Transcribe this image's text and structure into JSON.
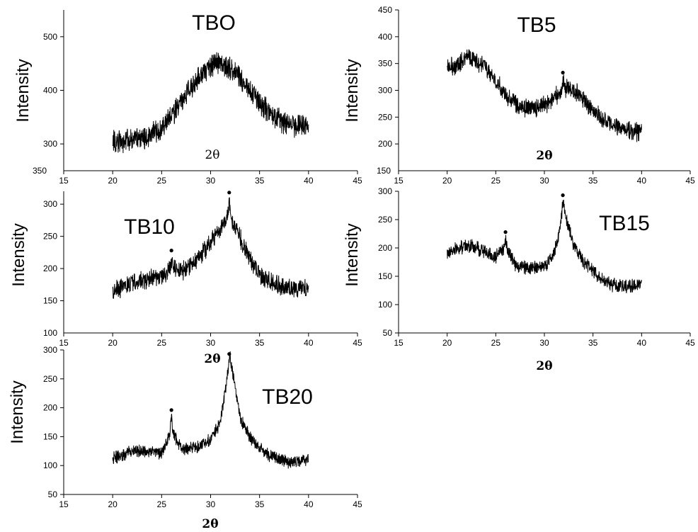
{
  "chart_data": [
    {
      "type": "line",
      "title": "TBO",
      "xlabel": "2θ",
      "ylabel": "Intensity",
      "xlim": [
        15,
        45
      ],
      "ylim": [
        250,
        550
      ],
      "x_ticks": [
        15,
        20,
        25,
        30,
        35,
        40,
        45
      ],
      "y_ticks": [
        300,
        400,
        500
      ],
      "y_tick_labels": [
        "300",
        "400",
        "500"
      ],
      "extra_y_label": "350",
      "grid": false,
      "profile": [
        [
          20,
          305
        ],
        [
          21,
          305
        ],
        [
          22,
          308
        ],
        [
          23,
          312
        ],
        [
          24,
          318
        ],
        [
          25,
          330
        ],
        [
          26,
          352
        ],
        [
          27,
          378
        ],
        [
          28,
          405
        ],
        [
          29,
          430
        ],
        [
          30,
          447
        ],
        [
          31,
          450
        ],
        [
          32,
          440
        ],
        [
          33,
          422
        ],
        [
          34,
          400
        ],
        [
          35,
          378
        ],
        [
          36,
          360
        ],
        [
          37,
          345
        ],
        [
          38,
          336
        ],
        [
          39,
          332
        ],
        [
          40,
          330
        ]
      ],
      "noise": 18,
      "peaks": []
    },
    {
      "type": "line",
      "title": "TB5",
      "xlabel": "2θ",
      "ylabel": "Intensity",
      "xlim": [
        15,
        45
      ],
      "ylim": [
        150,
        450
      ],
      "x_ticks": [
        15,
        20,
        25,
        30,
        35,
        40,
        45
      ],
      "y_ticks": [
        200,
        250,
        300,
        350,
        400,
        450
      ],
      "y_tick_labels": [
        "200",
        "250",
        "300",
        "350",
        "400",
        "450"
      ],
      "extra_y_label": "150",
      "grid": false,
      "profile": [
        [
          20,
          345
        ],
        [
          21,
          345
        ],
        [
          22,
          365
        ],
        [
          23,
          355
        ],
        [
          24,
          340
        ],
        [
          25,
          318
        ],
        [
          26,
          292
        ],
        [
          27,
          275
        ],
        [
          28,
          268
        ],
        [
          29,
          266
        ],
        [
          30,
          272
        ],
        [
          31,
          285
        ],
        [
          32,
          305
        ],
        [
          33,
          300
        ],
        [
          34,
          285
        ],
        [
          35,
          262
        ],
        [
          36,
          245
        ],
        [
          37,
          235
        ],
        [
          38,
          228
        ],
        [
          39,
          224
        ],
        [
          40,
          222
        ]
      ],
      "noise": 14,
      "peaks": [
        [
          31.9,
          333
        ]
      ]
    },
    {
      "type": "line",
      "title": "TB10",
      "xlabel": "2θ",
      "ylabel": "Intensity",
      "xlim": [
        15,
        45
      ],
      "ylim": [
        100,
        320
      ],
      "x_ticks": [
        15,
        20,
        25,
        30,
        35,
        40,
        45
      ],
      "y_ticks": [
        150,
        200,
        250,
        300
      ],
      "y_tick_labels": [
        "150",
        "200",
        "250",
        "300"
      ],
      "extra_y_label": "100",
      "grid": false,
      "profile": [
        [
          20,
          165
        ],
        [
          21,
          170
        ],
        [
          22,
          178
        ],
        [
          23,
          182
        ],
        [
          24,
          185
        ],
        [
          25,
          188
        ],
        [
          26,
          200
        ],
        [
          27,
          196
        ],
        [
          28,
          205
        ],
        [
          29,
          220
        ],
        [
          30,
          240
        ],
        [
          31,
          262
        ],
        [
          32,
          282
        ],
        [
          33,
          248
        ],
        [
          34,
          215
        ],
        [
          35,
          192
        ],
        [
          36,
          180
        ],
        [
          37,
          174
        ],
        [
          38,
          170
        ],
        [
          39,
          170
        ],
        [
          40,
          170
        ]
      ],
      "noise": 12,
      "peaks": [
        [
          26.0,
          228
        ],
        [
          31.9,
          318
        ]
      ]
    },
    {
      "type": "line",
      "title": "TB15",
      "xlabel": "2θ",
      "ylabel": "Intensity",
      "xlim": [
        15,
        45
      ],
      "ylim": [
        50,
        300
      ],
      "x_ticks": [
        15,
        20,
        25,
        30,
        35,
        40,
        45
      ],
      "y_ticks": [
        50,
        100,
        150,
        200,
        250,
        300
      ],
      "y_tick_labels": [
        "50",
        "100",
        "150",
        "200",
        "250",
        "300"
      ],
      "extra_y_label": "",
      "grid": false,
      "profile": [
        [
          20,
          190
        ],
        [
          21,
          198
        ],
        [
          22,
          205
        ],
        [
          23,
          200
        ],
        [
          24,
          192
        ],
        [
          25,
          185
        ],
        [
          26,
          200
        ],
        [
          27,
          170
        ],
        [
          28,
          165
        ],
        [
          29,
          165
        ],
        [
          30,
          168
        ],
        [
          31,
          188
        ],
        [
          32,
          270
        ],
        [
          33,
          205
        ],
        [
          34,
          175
        ],
        [
          35,
          160
        ],
        [
          36,
          145
        ],
        [
          37,
          135
        ],
        [
          38,
          132
        ],
        [
          39,
          134
        ],
        [
          40,
          138
        ]
      ],
      "noise": 10,
      "peaks": [
        [
          26.0,
          228
        ],
        [
          31.9,
          293
        ]
      ]
    },
    {
      "type": "line",
      "title": "TB20",
      "xlabel": "2θ",
      "ylabel": "Intensity",
      "xlim": [
        15,
        45
      ],
      "ylim": [
        50,
        300
      ],
      "x_ticks": [
        15,
        20,
        25,
        30,
        35,
        40,
        45
      ],
      "y_ticks": [
        50,
        100,
        150,
        200,
        250,
        300
      ],
      "y_tick_labels": [
        "50",
        "100",
        "150",
        "200",
        "250",
        "300"
      ],
      "extra_y_label": "",
      "grid": false,
      "profile": [
        [
          20,
          112
        ],
        [
          21,
          118
        ],
        [
          22,
          124
        ],
        [
          23,
          126
        ],
        [
          24,
          124
        ],
        [
          25,
          120
        ],
        [
          26,
          160
        ],
        [
          27,
          128
        ],
        [
          28,
          130
        ],
        [
          29,
          135
        ],
        [
          30,
          145
        ],
        [
          31,
          175
        ],
        [
          32,
          285
        ],
        [
          33,
          185
        ],
        [
          34,
          148
        ],
        [
          35,
          130
        ],
        [
          36,
          118
        ],
        [
          37,
          112
        ],
        [
          38,
          105
        ],
        [
          39,
          108
        ],
        [
          40,
          112
        ]
      ],
      "noise": 9,
      "peaks": [
        [
          26.0,
          196
        ],
        [
          31.9,
          293
        ]
      ]
    }
  ]
}
